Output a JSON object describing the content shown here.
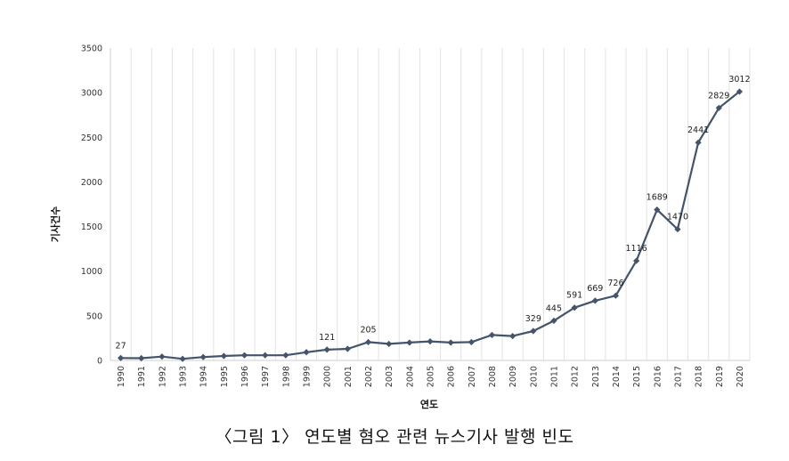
{
  "chart_data": {
    "type": "line",
    "title": "",
    "xlabel": "연도",
    "ylabel": "기사건수",
    "ylim": [
      0,
      3500
    ],
    "yticks": [
      0,
      500,
      1000,
      1500,
      2000,
      2500,
      3000,
      3500
    ],
    "grid": "vertical",
    "line_color": "#44546A",
    "marker": "diamond",
    "categories": [
      "1990",
      "1991",
      "1992",
      "1993",
      "1994",
      "1995",
      "1996",
      "1997",
      "1998",
      "1999",
      "2000",
      "2001",
      "2002",
      "2003",
      "2004",
      "2005",
      "2006",
      "2007",
      "2008",
      "2009",
      "2010",
      "2011",
      "2012",
      "2013",
      "2014",
      "2015",
      "2016",
      "2017",
      "2018",
      "2019",
      "2020"
    ],
    "values": [
      27,
      25,
      43,
      18,
      38,
      50,
      58,
      58,
      58,
      92,
      121,
      130,
      205,
      185,
      200,
      213,
      200,
      205,
      285,
      273,
      329,
      445,
      591,
      669,
      726,
      1116,
      1689,
      1470,
      2441,
      2829,
      3012
    ],
    "data_labels": [
      {
        "category": "1990",
        "text": "27"
      },
      {
        "category": "2000",
        "text": "121"
      },
      {
        "category": "2002",
        "text": "205"
      },
      {
        "category": "2010",
        "text": "329"
      },
      {
        "category": "2011",
        "text": "445"
      },
      {
        "category": "2012",
        "text": "591"
      },
      {
        "category": "2013",
        "text": "669"
      },
      {
        "category": "2014",
        "text": "726"
      },
      {
        "category": "2015",
        "text": "1116"
      },
      {
        "category": "2016",
        "text": "1689"
      },
      {
        "category": "2017",
        "text": "1470"
      },
      {
        "category": "2018",
        "text": "2441"
      },
      {
        "category": "2019",
        "text": "2829"
      },
      {
        "category": "2020",
        "text": "3012"
      }
    ]
  },
  "caption": "〈그림 1〉 연도별 혐오 관련 뉴스기사 발행 빈도"
}
